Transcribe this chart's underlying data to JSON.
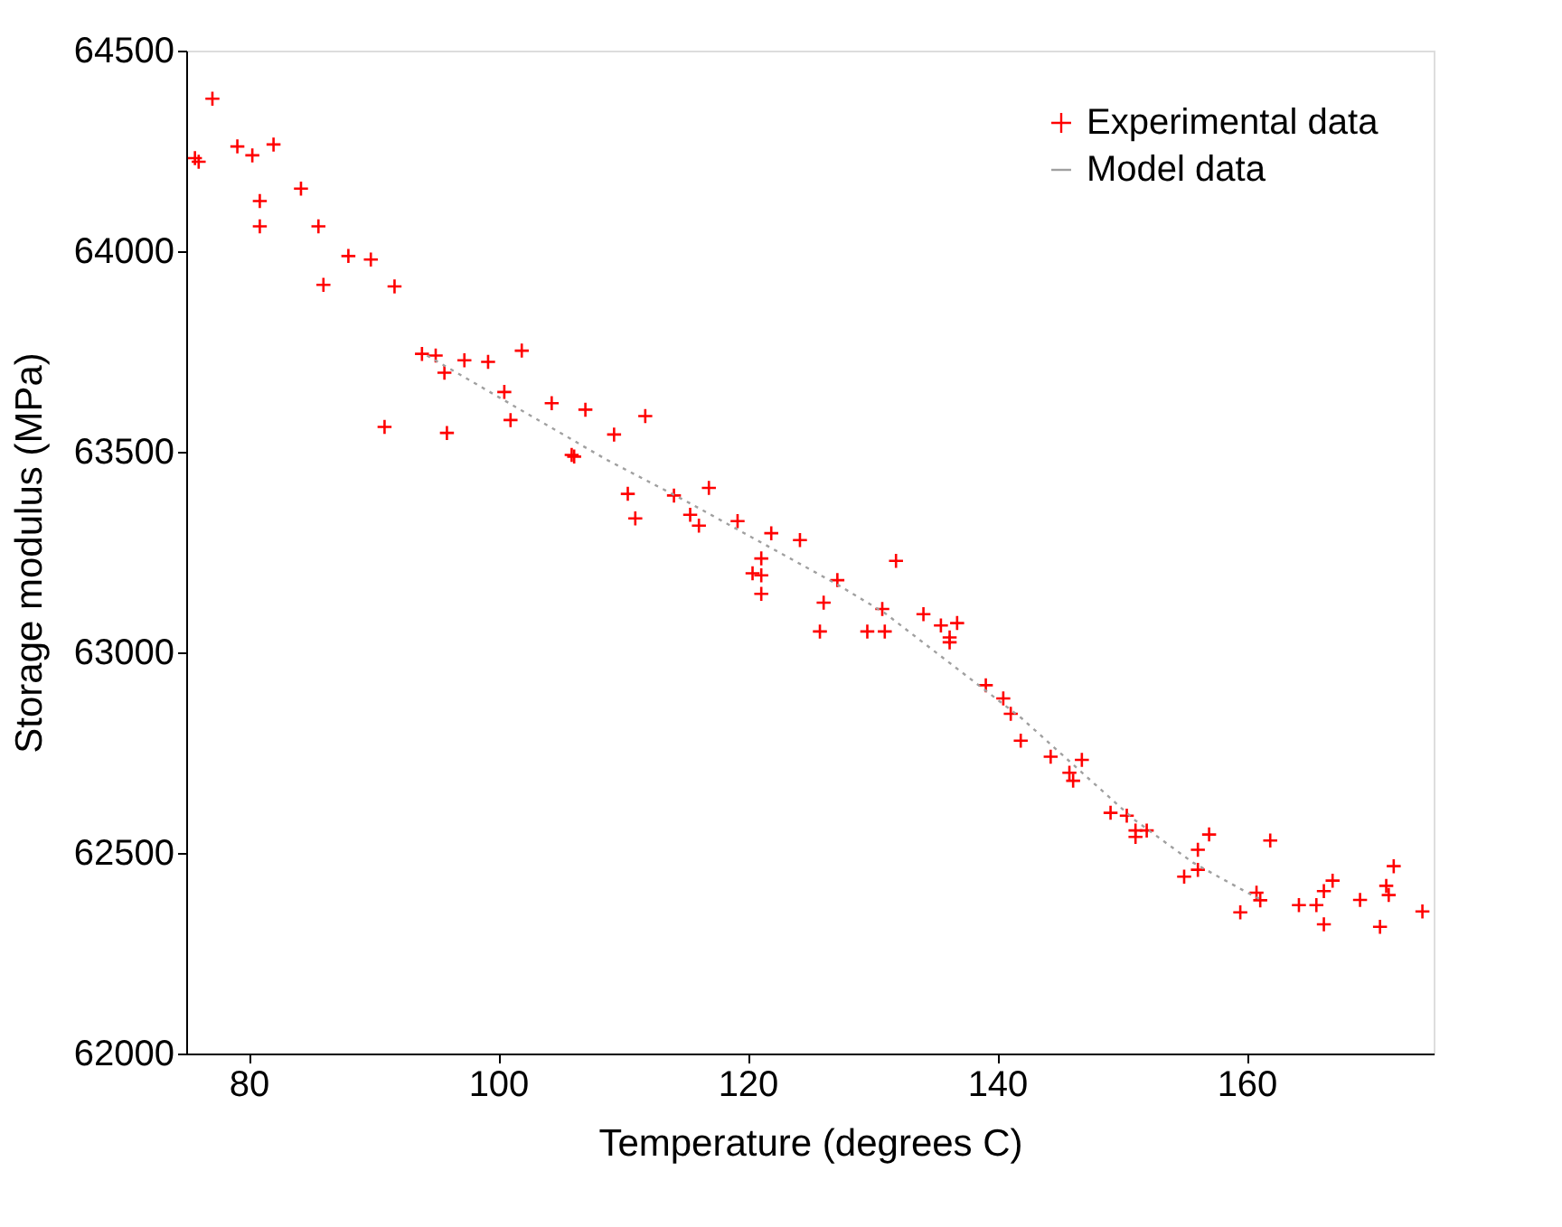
{
  "chart_data": {
    "type": "scatter",
    "xlabel": "Temperature (degrees C)",
    "ylabel": "Storage modulus (MPa)",
    "xlim": [
      75,
      175
    ],
    "xticks": [
      80,
      100,
      120,
      140,
      160
    ],
    "ylim": [
      62000,
      64500
    ],
    "yticks": [
      62000,
      62500,
      63000,
      63500,
      64000,
      64500
    ],
    "grid": false,
    "legend": "top right",
    "series": [
      {
        "name": "Experimental data",
        "marker": "cross",
        "color": "#ff0000",
        "x": [
          75.7,
          76.0,
          77.1,
          79.1,
          80.3,
          82.0,
          84.2,
          80.9,
          80.9,
          85.6,
          88.0,
          89.8,
          86.0,
          91.7,
          93.9,
          95.0,
          95.7,
          97.3,
          99.2,
          101.9,
          100.5,
          101.0,
          104.3,
          107.0,
          109.3,
          111.8,
          105.9,
          106.1,
          90.9,
          95.9,
          110.4,
          111.0,
          114.1,
          115.4,
          116.1,
          116.9,
          119.2,
          121.9,
          124.2,
          121.1,
          120.4,
          121.1,
          121.1,
          127.2,
          126.1,
          125.8,
          131.9,
          130.8,
          129.6,
          131.0,
          134.1,
          135.5,
          136.8,
          136.2,
          136.2,
          139.1,
          140.5,
          141.1,
          141.9,
          144.3,
          146.8,
          145.8,
          146.1,
          149.1,
          150.4,
          151.1,
          152.0,
          151.1,
          157.0,
          156.1,
          156.1,
          155.0,
          161.9,
          160.8,
          161.1,
          159.5,
          166.9,
          166.2,
          164.2,
          165.6,
          166.2,
          169.1,
          171.8,
          171.2,
          171.4,
          170.7,
          174.1
        ],
        "values": [
          64232,
          64223,
          64380,
          64261,
          64239,
          64266,
          64156,
          64125,
          64062,
          64062,
          63988,
          63979,
          63916,
          63912,
          63744,
          63740,
          63697,
          63728,
          63724,
          63752,
          63649,
          63579,
          63621,
          63605,
          63543,
          63589,
          63492,
          63488,
          63562,
          63547,
          63395,
          63334,
          63391,
          63343,
          63316,
          63410,
          63327,
          63297,
          63280,
          63234,
          63197,
          63192,
          63146,
          63180,
          63124,
          63052,
          63228,
          63108,
          63052,
          63052,
          63095,
          63067,
          63073,
          63037,
          63025,
          62918,
          62885,
          62847,
          62780,
          62740,
          62732,
          62700,
          62680,
          62600,
          62593,
          62556,
          62556,
          62540,
          62546,
          62508,
          62458,
          62441,
          62531,
          62401,
          62382,
          62352,
          62431,
          62405,
          62370,
          62370,
          62322,
          62383,
          62467,
          62418,
          62395,
          62316,
          62354
        ]
      },
      {
        "name": "Model data",
        "type": "line",
        "marker": "none",
        "line_style": "dotted",
        "color": "#a0a0a0",
        "x": [
          94.3,
          108.6,
          115.3,
          127.1,
          131.0,
          142.0,
          151.0,
          155.7,
          159.6,
          161.0
        ],
        "values": [
          63740,
          63482,
          63373,
          63171,
          63098,
          62835,
          62583,
          62476,
          62409,
          62386
        ]
      }
    ]
  }
}
